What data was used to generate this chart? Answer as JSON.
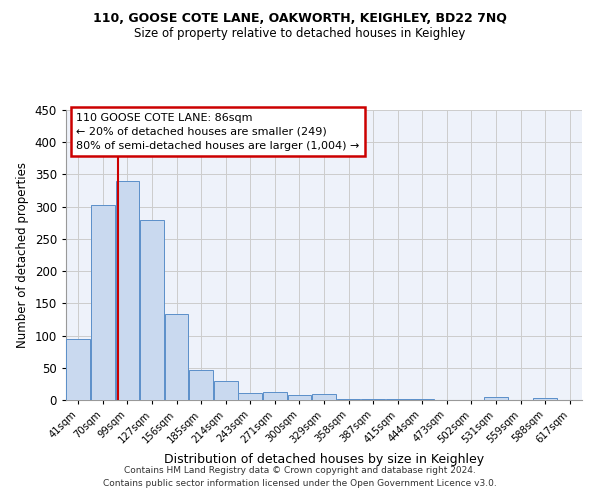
{
  "title1": "110, GOOSE COTE LANE, OAKWORTH, KEIGHLEY, BD22 7NQ",
  "title2": "Size of property relative to detached houses in Keighley",
  "xlabel": "Distribution of detached houses by size in Keighley",
  "ylabel": "Number of detached properties",
  "categories": [
    "41sqm",
    "70sqm",
    "99sqm",
    "127sqm",
    "156sqm",
    "185sqm",
    "214sqm",
    "243sqm",
    "271sqm",
    "300sqm",
    "329sqm",
    "358sqm",
    "387sqm",
    "415sqm",
    "444sqm",
    "473sqm",
    "502sqm",
    "531sqm",
    "559sqm",
    "588sqm",
    "617sqm"
  ],
  "values": [
    95,
    303,
    340,
    280,
    133,
    47,
    30,
    11,
    13,
    8,
    9,
    2,
    1,
    2,
    1,
    0,
    0,
    4,
    0,
    3,
    0
  ],
  "bar_color": "#c9d9ef",
  "bar_edge_color": "#5b8fc9",
  "vline_x_index": 1.62,
  "annotation_text1": "110 GOOSE COTE LANE: 86sqm",
  "annotation_text2": "← 20% of detached houses are smaller (249)",
  "annotation_text3": "80% of semi-detached houses are larger (1,004) →",
  "annotation_box_color": "#ffffff",
  "annotation_border_color": "#cc0000",
  "vline_color": "#cc0000",
  "footer1": "Contains HM Land Registry data © Crown copyright and database right 2024.",
  "footer2": "Contains public sector information licensed under the Open Government Licence v3.0.",
  "ylim": [
    0,
    450
  ],
  "yticks": [
    0,
    50,
    100,
    150,
    200,
    250,
    300,
    350,
    400,
    450
  ],
  "grid_color": "#cccccc",
  "bg_color": "#eef2fa"
}
